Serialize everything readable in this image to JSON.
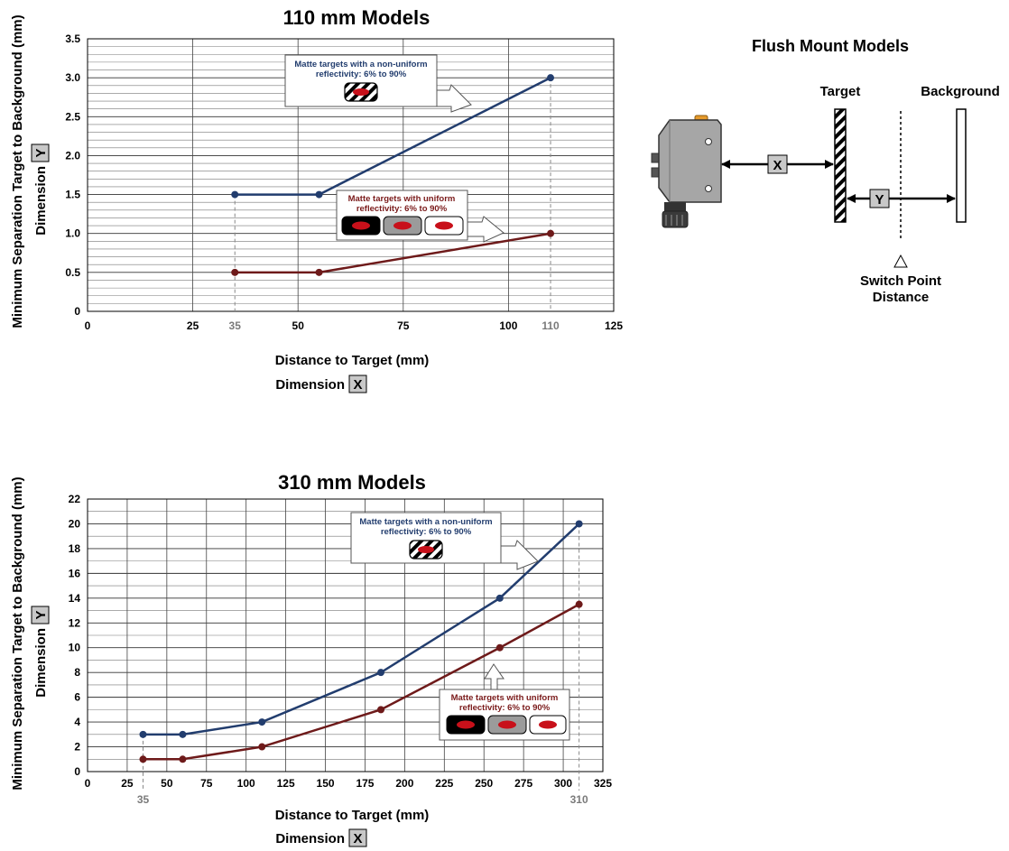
{
  "chart_data": [
    {
      "type": "line",
      "title": "110 mm Models",
      "xlabel": "Distance to Target (mm)",
      "xlabel_dimension_prefix": "Dimension",
      "xlabel_dimension_letter": "X",
      "ylabel": "Minimum Separation Target to Background (mm)",
      "ylabel_dimension_prefix": "Dimension",
      "ylabel_dimension_letter": "Y",
      "xlim": [
        0,
        125
      ],
      "ylim": [
        0,
        3.5
      ],
      "x_ticks": [
        "0",
        "25",
        "35",
        "50",
        "75",
        "100",
        "110",
        "125"
      ],
      "x_tick_values": [
        0,
        25,
        35,
        50,
        75,
        100,
        110,
        125
      ],
      "x_tick_gray": [
        false,
        false,
        true,
        false,
        false,
        false,
        true,
        false
      ],
      "y_ticks": [
        "0",
        "0.5",
        "1.0",
        "1.5",
        "2.0",
        "2.5",
        "3.0",
        "3.5"
      ],
      "y_tick_values": [
        0,
        0.5,
        1.0,
        1.5,
        2.0,
        2.5,
        3.0,
        3.5
      ],
      "x_major_grid": [
        25,
        35,
        50,
        75,
        100,
        110
      ],
      "y_minor_step": 0.1,
      "grid": true,
      "dashed_markers": [
        35,
        110
      ],
      "series": [
        {
          "name": "Matte targets with a non-uniform reflectivity: 6% to 90%",
          "color": "#223d6e",
          "x": [
            35,
            55,
            110
          ],
          "y": [
            1.5,
            1.5,
            3.0
          ]
        },
        {
          "name": "Matte targets with uniform reflectivity: 6% to 90%",
          "color": "#6e1a1a",
          "x": [
            35,
            55,
            110
          ],
          "y": [
            0.5,
            0.5,
            1.0
          ]
        }
      ],
      "callouts": [
        {
          "lines": [
            "Matte targets with a non-uniform",
            "reflectivity: 6% to 90%"
          ],
          "color": "#223d6e",
          "swatches": [
            "striped"
          ]
        },
        {
          "lines": [
            "Matte targets with uniform",
            "reflectivity: 6% to 90%"
          ],
          "color": "#7a1a1a",
          "swatches": [
            "black",
            "gray",
            "white"
          ]
        }
      ]
    },
    {
      "type": "line",
      "title": "310 mm Models",
      "xlabel": "Distance to Target (mm)",
      "xlabel_dimension_prefix": "Dimension",
      "xlabel_dimension_letter": "X",
      "ylabel": "Minimum Separation Target to Background (mm)",
      "ylabel_dimension_prefix": "Dimension",
      "ylabel_dimension_letter": "Y",
      "xlim": [
        0,
        325
      ],
      "ylim": [
        0,
        22
      ],
      "x_ticks": [
        "0",
        "25",
        "50",
        "75",
        "100",
        "125",
        "150",
        "175",
        "200",
        "225",
        "250",
        "275",
        "300",
        "325"
      ],
      "x_tick_values": [
        0,
        25,
        50,
        75,
        100,
        125,
        150,
        175,
        200,
        225,
        250,
        275,
        300,
        325
      ],
      "x_extra_ticks": [
        "35",
        "310"
      ],
      "x_extra_tick_values": [
        35,
        310
      ],
      "y_ticks": [
        "0",
        "2",
        "4",
        "6",
        "8",
        "10",
        "12",
        "14",
        "16",
        "18",
        "20",
        "22"
      ],
      "y_tick_values": [
        0,
        2,
        4,
        6,
        8,
        10,
        12,
        14,
        16,
        18,
        20,
        22
      ],
      "x_grid_step": 25,
      "y_minor_step": 1,
      "grid": true,
      "dashed_markers": [
        35,
        310
      ],
      "series": [
        {
          "name": "Matte targets with a non-uniform reflectivity: 6% to 90%",
          "color": "#223d6e",
          "x": [
            35,
            60,
            110,
            185,
            260,
            310
          ],
          "y": [
            3,
            3,
            4,
            8,
            14,
            20
          ]
        },
        {
          "name": "Matte targets with uniform reflectivity: 6% to 90%",
          "color": "#6e1a1a",
          "x": [
            35,
            60,
            110,
            185,
            260,
            310
          ],
          "y": [
            1,
            1,
            2,
            5,
            10,
            13.5
          ]
        }
      ],
      "callouts": [
        {
          "lines": [
            "Matte targets with a non-uniform",
            "reflectivity: 6% to 90%"
          ],
          "color": "#223d6e",
          "swatches": [
            "striped"
          ]
        },
        {
          "lines": [
            "Matte targets with uniform",
            "reflectivity: 6% to 90%"
          ],
          "color": "#7a1a1a",
          "swatches": [
            "black",
            "gray",
            "white"
          ]
        }
      ]
    }
  ],
  "diagram": {
    "title": "Flush Mount Models",
    "target_label": "Target",
    "background_label": "Background",
    "x_label": "X",
    "y_label": "Y",
    "switch_point_line1": "Switch Point",
    "switch_point_line2": "Distance",
    "sensor_color": "#a6a6a6",
    "indicator_color": "#e69a2b"
  }
}
